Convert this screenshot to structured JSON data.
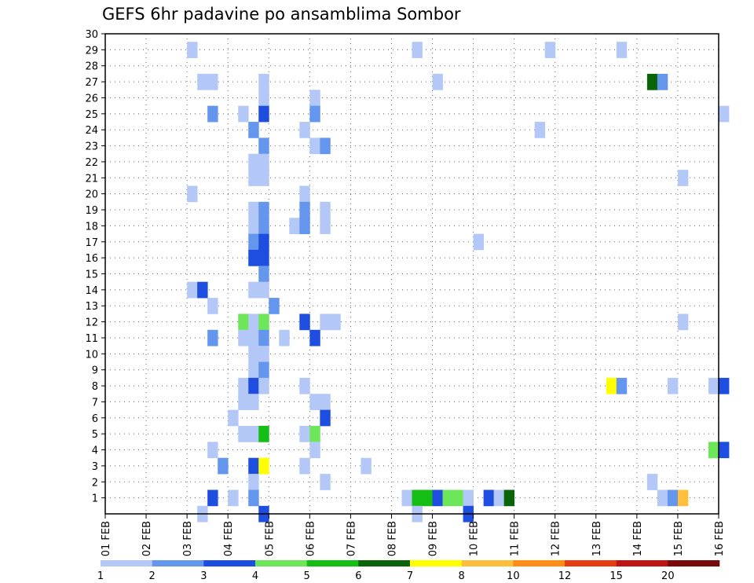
{
  "chart_data": {
    "type": "heatmap",
    "title": "GEFS 6hr padavine po ansamblima Sombor",
    "xlabel": "",
    "ylabel": "",
    "x_start": "01 FEB",
    "x_step_hours": 6,
    "x_tick_labels": [
      "01 FEB",
      "02 FEB",
      "03 FEB",
      "04 FEB",
      "05 FEB",
      "06 FEB",
      "07 FEB",
      "08 FEB",
      "09 FEB",
      "10 FEB",
      "11 FEB",
      "12 FEB",
      "13 FEB",
      "14 FEB",
      "15 FEB",
      "16 FEB"
    ],
    "y_tick_labels": [
      "1",
      "2",
      "3",
      "4",
      "5",
      "6",
      "7",
      "8",
      "9",
      "10",
      "11",
      "12",
      "13",
      "14",
      "15",
      "16",
      "17",
      "18",
      "19",
      "20",
      "21",
      "22",
      "23",
      "24",
      "25",
      "26",
      "27",
      "28",
      "29",
      "30"
    ],
    "ylim": [
      0,
      30
    ],
    "grid": true,
    "colorbar": {
      "labels": [
        "1",
        "2",
        "3",
        "4",
        "5",
        "6",
        "7",
        "8",
        "10",
        "12",
        "15",
        "20"
      ],
      "colors": [
        "#b4c8f8",
        "#6496ee",
        "#1e4ee0",
        "#6ee65a",
        "#14be14",
        "#0a640a",
        "#ffff00",
        "#ffbe3c",
        "#ff8c14",
        "#e63c14",
        "#be1414",
        "#780a0a"
      ]
    },
    "cells_legend": "each cell = [x (time, 6-hour steps after 01 FEB 00Z), y (ensemble member 1-30), colour class index 0-11]",
    "cells": [
      [
        8,
        29,
        0
      ],
      [
        30,
        29,
        0
      ],
      [
        43,
        29,
        0
      ],
      [
        50,
        29,
        0
      ],
      [
        9,
        27,
        0
      ],
      [
        10,
        27,
        0
      ],
      [
        15,
        27,
        0
      ],
      [
        32,
        27,
        0
      ],
      [
        53,
        27,
        5
      ],
      [
        54,
        27,
        1
      ],
      [
        15,
        26,
        0
      ],
      [
        20,
        26,
        0
      ],
      [
        10,
        25,
        1
      ],
      [
        13,
        25,
        0
      ],
      [
        15,
        25,
        2
      ],
      [
        20,
        25,
        1
      ],
      [
        60,
        25,
        0
      ],
      [
        14,
        24,
        1
      ],
      [
        19,
        24,
        0
      ],
      [
        42,
        24,
        0
      ],
      [
        15,
        23,
        1
      ],
      [
        20,
        23,
        0
      ],
      [
        21,
        23,
        1
      ],
      [
        14,
        22,
        0
      ],
      [
        15,
        22,
        0
      ],
      [
        14,
        21,
        0
      ],
      [
        15,
        21,
        0
      ],
      [
        56,
        21,
        0
      ],
      [
        8,
        20,
        0
      ],
      [
        19,
        20,
        0
      ],
      [
        14,
        19,
        0
      ],
      [
        15,
        19,
        1
      ],
      [
        19,
        19,
        1
      ],
      [
        21,
        19,
        0
      ],
      [
        14,
        18,
        0
      ],
      [
        15,
        18,
        1
      ],
      [
        18,
        18,
        0
      ],
      [
        19,
        18,
        1
      ],
      [
        21,
        18,
        0
      ],
      [
        14,
        17,
        1
      ],
      [
        15,
        17,
        2
      ],
      [
        36,
        17,
        0
      ],
      [
        14,
        16,
        2
      ],
      [
        15,
        16,
        2
      ],
      [
        15,
        15,
        1
      ],
      [
        8,
        14,
        0
      ],
      [
        9,
        14,
        2
      ],
      [
        14,
        14,
        0
      ],
      [
        15,
        14,
        0
      ],
      [
        10,
        13,
        0
      ],
      [
        16,
        13,
        1
      ],
      [
        13,
        12,
        3
      ],
      [
        14,
        12,
        0
      ],
      [
        15,
        12,
        3
      ],
      [
        19,
        12,
        2
      ],
      [
        21,
        12,
        0
      ],
      [
        22,
        12,
        0
      ],
      [
        56,
        12,
        0
      ],
      [
        10,
        11,
        1
      ],
      [
        13,
        11,
        0
      ],
      [
        14,
        11,
        0
      ],
      [
        15,
        11,
        1
      ],
      [
        17,
        11,
        0
      ],
      [
        20,
        11,
        2
      ],
      [
        14,
        10,
        0
      ],
      [
        15,
        10,
        0
      ],
      [
        14,
        9,
        0
      ],
      [
        15,
        9,
        1
      ],
      [
        13,
        8,
        0
      ],
      [
        14,
        8,
        2
      ],
      [
        15,
        8,
        0
      ],
      [
        19,
        8,
        0
      ],
      [
        49,
        8,
        6
      ],
      [
        50,
        8,
        1
      ],
      [
        55,
        8,
        0
      ],
      [
        59,
        8,
        0
      ],
      [
        60,
        8,
        2
      ],
      [
        13,
        7,
        0
      ],
      [
        14,
        7,
        0
      ],
      [
        20,
        7,
        0
      ],
      [
        21,
        7,
        0
      ],
      [
        12,
        6,
        0
      ],
      [
        21,
        6,
        2
      ],
      [
        13,
        5,
        0
      ],
      [
        14,
        5,
        0
      ],
      [
        15,
        5,
        4
      ],
      [
        19,
        5,
        0
      ],
      [
        20,
        5,
        3
      ],
      [
        10,
        4,
        0
      ],
      [
        20,
        4,
        0
      ],
      [
        59,
        4,
        3
      ],
      [
        60,
        4,
        2
      ],
      [
        11,
        3,
        1
      ],
      [
        14,
        3,
        2
      ],
      [
        15,
        3,
        6
      ],
      [
        19,
        3,
        0
      ],
      [
        25,
        3,
        0
      ],
      [
        14,
        2,
        0
      ],
      [
        21,
        2,
        0
      ],
      [
        53,
        2,
        0
      ],
      [
        10,
        1,
        2
      ],
      [
        12,
        1,
        0
      ],
      [
        14,
        1,
        1
      ],
      [
        29,
        1,
        0
      ],
      [
        30,
        1,
        4
      ],
      [
        31,
        1,
        4
      ],
      [
        32,
        1,
        2
      ],
      [
        33,
        1,
        3
      ],
      [
        34,
        1,
        3
      ],
      [
        35,
        1,
        0
      ],
      [
        37,
        1,
        2
      ],
      [
        38,
        1,
        0
      ],
      [
        39,
        1,
        5
      ],
      [
        54,
        1,
        0
      ],
      [
        55,
        1,
        1
      ],
      [
        56,
        1,
        7
      ],
      [
        9,
        0,
        0
      ],
      [
        15,
        0,
        2
      ],
      [
        30,
        0,
        0
      ],
      [
        35,
        0,
        2
      ]
    ]
  }
}
